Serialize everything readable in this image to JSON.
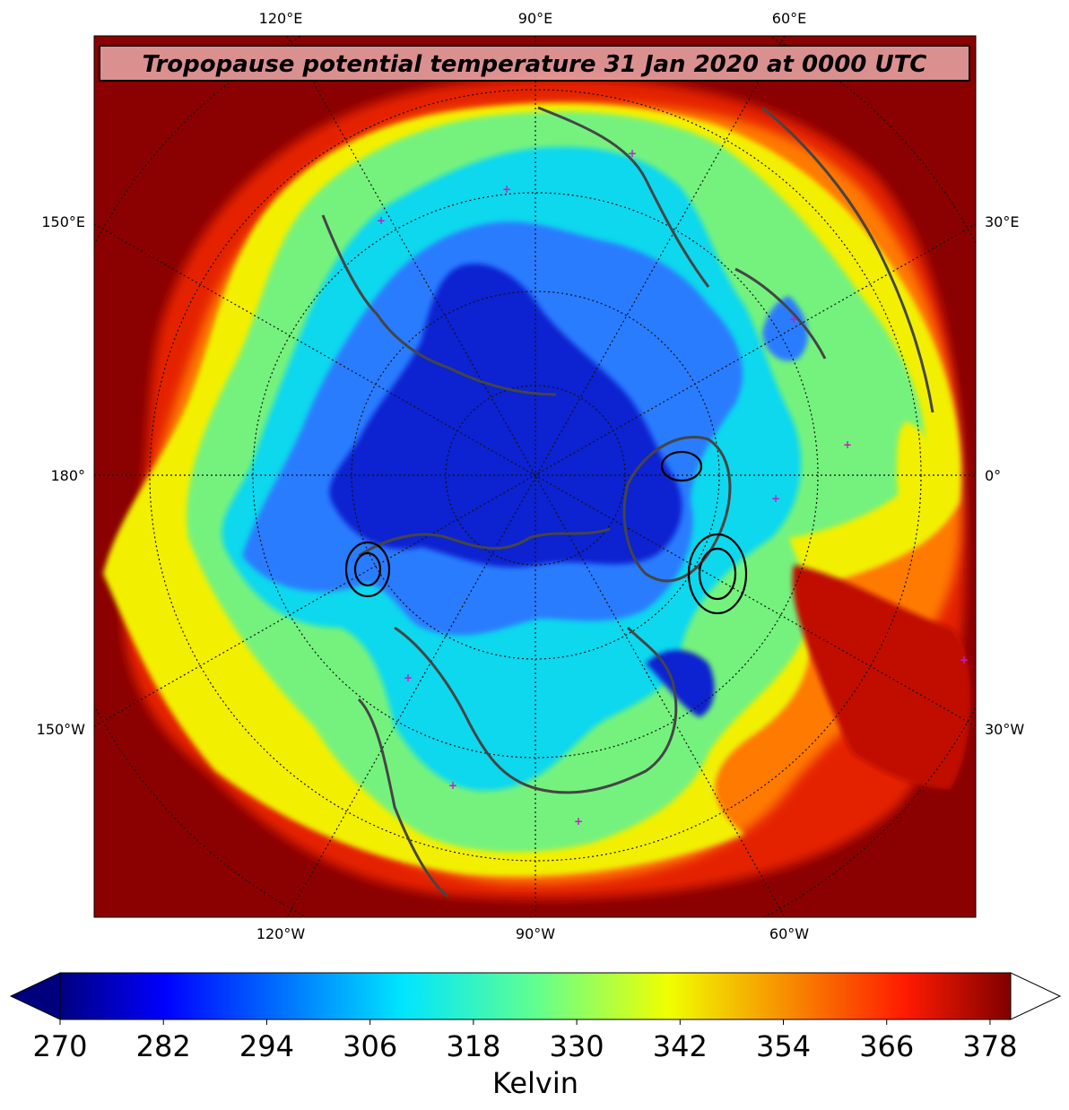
{
  "title": "Tropopause potential temperature 31 Jan 2020 at 0000 UTC",
  "map": {
    "projection": "north-polar-stereographic",
    "variable": "tropopause potential temperature",
    "overlays": [
      "coastlines",
      "country and state borders",
      "graticule",
      "sea-level pressure contours",
      "observation station markers"
    ],
    "colors": {
      "warm_outer": "#8b0000",
      "red": "#e52400",
      "orange": "#ff8c00",
      "yellow": "#f2f000",
      "green": "#74f27e",
      "cyan": "#10d8ee",
      "blue": "#2a7bff",
      "deep_blue": "#0a20d0",
      "coastline": "#444444",
      "station_marker": "#c020c0"
    },
    "lon_labels_top": [
      "120°E",
      "90°E",
      "60°E"
    ],
    "lon_labels_bottom": [
      "120°W",
      "90°W",
      "60°W"
    ],
    "lon_labels_left": [
      "150°E",
      "180°",
      "150°W"
    ],
    "lon_labels_right": [
      "30°E",
      "0°",
      "30°W"
    ]
  },
  "colorbar": {
    "label": "Kelvin",
    "ticks": [
      "270",
      "282",
      "294",
      "306",
      "318",
      "330",
      "342",
      "354",
      "366",
      "378"
    ],
    "extend": "both",
    "colormap": "jet"
  }
}
